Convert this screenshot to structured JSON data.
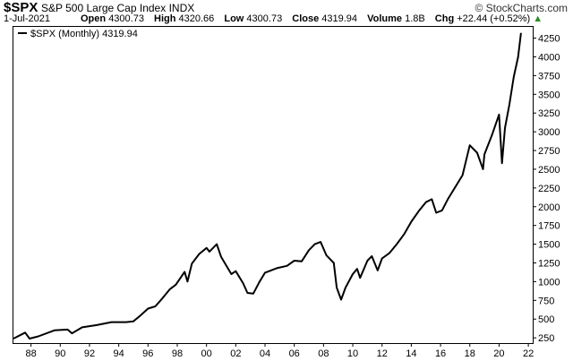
{
  "header": {
    "symbol": "$SPX",
    "index_name": "S&P 500 Large Cap Index",
    "exchange": "INDX",
    "brand": "© StockCharts.com",
    "date": "1-Jul-2021",
    "open_label": "Open",
    "open": "4300.73",
    "high_label": "High",
    "high": "4320.66",
    "low_label": "Low",
    "low": "4300.73",
    "close_label": "Close",
    "close": "4319.94",
    "volume_label": "Volume",
    "volume": "1.8B",
    "chg_label": "Chg",
    "chg": "+22.44 (+0.52%)",
    "up_arrow": "▲"
  },
  "colors": {
    "line": "#000000",
    "up": "#2a8a2a",
    "axis": "#000000"
  },
  "chart_data": {
    "type": "line",
    "title": "$SPX (Monthly) 4319.94",
    "legend": "$SPX (Monthly) 4319.94",
    "legend_position": "top-left",
    "x_range": [
      1986.8,
      2022.3
    ],
    "ylim": [
      180,
      4400
    ],
    "x_tick_values": [
      1988,
      1990,
      1992,
      1994,
      1996,
      1998,
      2000,
      2002,
      2004,
      2006,
      2008,
      2010,
      2012,
      2014,
      2016,
      2018,
      2020,
      2022
    ],
    "x_tick_labels": [
      "88",
      "90",
      "92",
      "94",
      "96",
      "98",
      "00",
      "02",
      "04",
      "06",
      "08",
      "10",
      "12",
      "14",
      "16",
      "18",
      "20",
      "22"
    ],
    "y_ticks": [
      250,
      500,
      750,
      1000,
      1250,
      1500,
      1750,
      2000,
      2250,
      2500,
      2750,
      3000,
      3250,
      3500,
      3750,
      4000,
      4250
    ],
    "x": [
      1986.8,
      1987.6,
      1987.9,
      1988.5,
      1989.6,
      1990.5,
      1990.8,
      1991.5,
      1992.5,
      1993.5,
      1994.5,
      1995.0,
      1995.5,
      1996.0,
      1996.5,
      1997.0,
      1997.5,
      1997.9,
      1998.5,
      1998.7,
      1999.0,
      1999.5,
      2000.0,
      2000.2,
      2000.7,
      2001.0,
      2001.7,
      2002.0,
      2002.5,
      2002.8,
      2003.2,
      2003.6,
      2004.0,
      2004.8,
      2005.5,
      2006.0,
      2006.5,
      2007.0,
      2007.4,
      2007.8,
      2008.2,
      2008.7,
      2008.9,
      2009.2,
      2009.5,
      2010.0,
      2010.3,
      2010.5,
      2011.0,
      2011.3,
      2011.7,
      2012.0,
      2012.5,
      2013.0,
      2013.5,
      2014.0,
      2014.5,
      2015.0,
      2015.4,
      2015.7,
      2016.1,
      2016.5,
      2017.0,
      2017.5,
      2018.0,
      2018.5,
      2018.9,
      2019.0,
      2019.5,
      2020.0,
      2020.2,
      2020.4,
      2020.7,
      2021.0,
      2021.3,
      2021.5
    ],
    "values": [
      240,
      320,
      240,
      270,
      350,
      360,
      310,
      390,
      420,
      460,
      460,
      470,
      550,
      640,
      670,
      780,
      900,
      960,
      1130,
      1000,
      1240,
      1370,
      1450,
      1400,
      1500,
      1330,
      1100,
      1140,
      980,
      850,
      840,
      990,
      1120,
      1180,
      1210,
      1280,
      1270,
      1420,
      1500,
      1530,
      1350,
      1250,
      920,
      760,
      920,
      1100,
      1170,
      1050,
      1280,
      1340,
      1150,
      1310,
      1380,
      1500,
      1630,
      1800,
      1940,
      2060,
      2100,
      1920,
      1950,
      2100,
      2260,
      2420,
      2820,
      2720,
      2500,
      2700,
      2950,
      3230,
      2580,
      3050,
      3360,
      3730,
      4000,
      4320
    ]
  }
}
